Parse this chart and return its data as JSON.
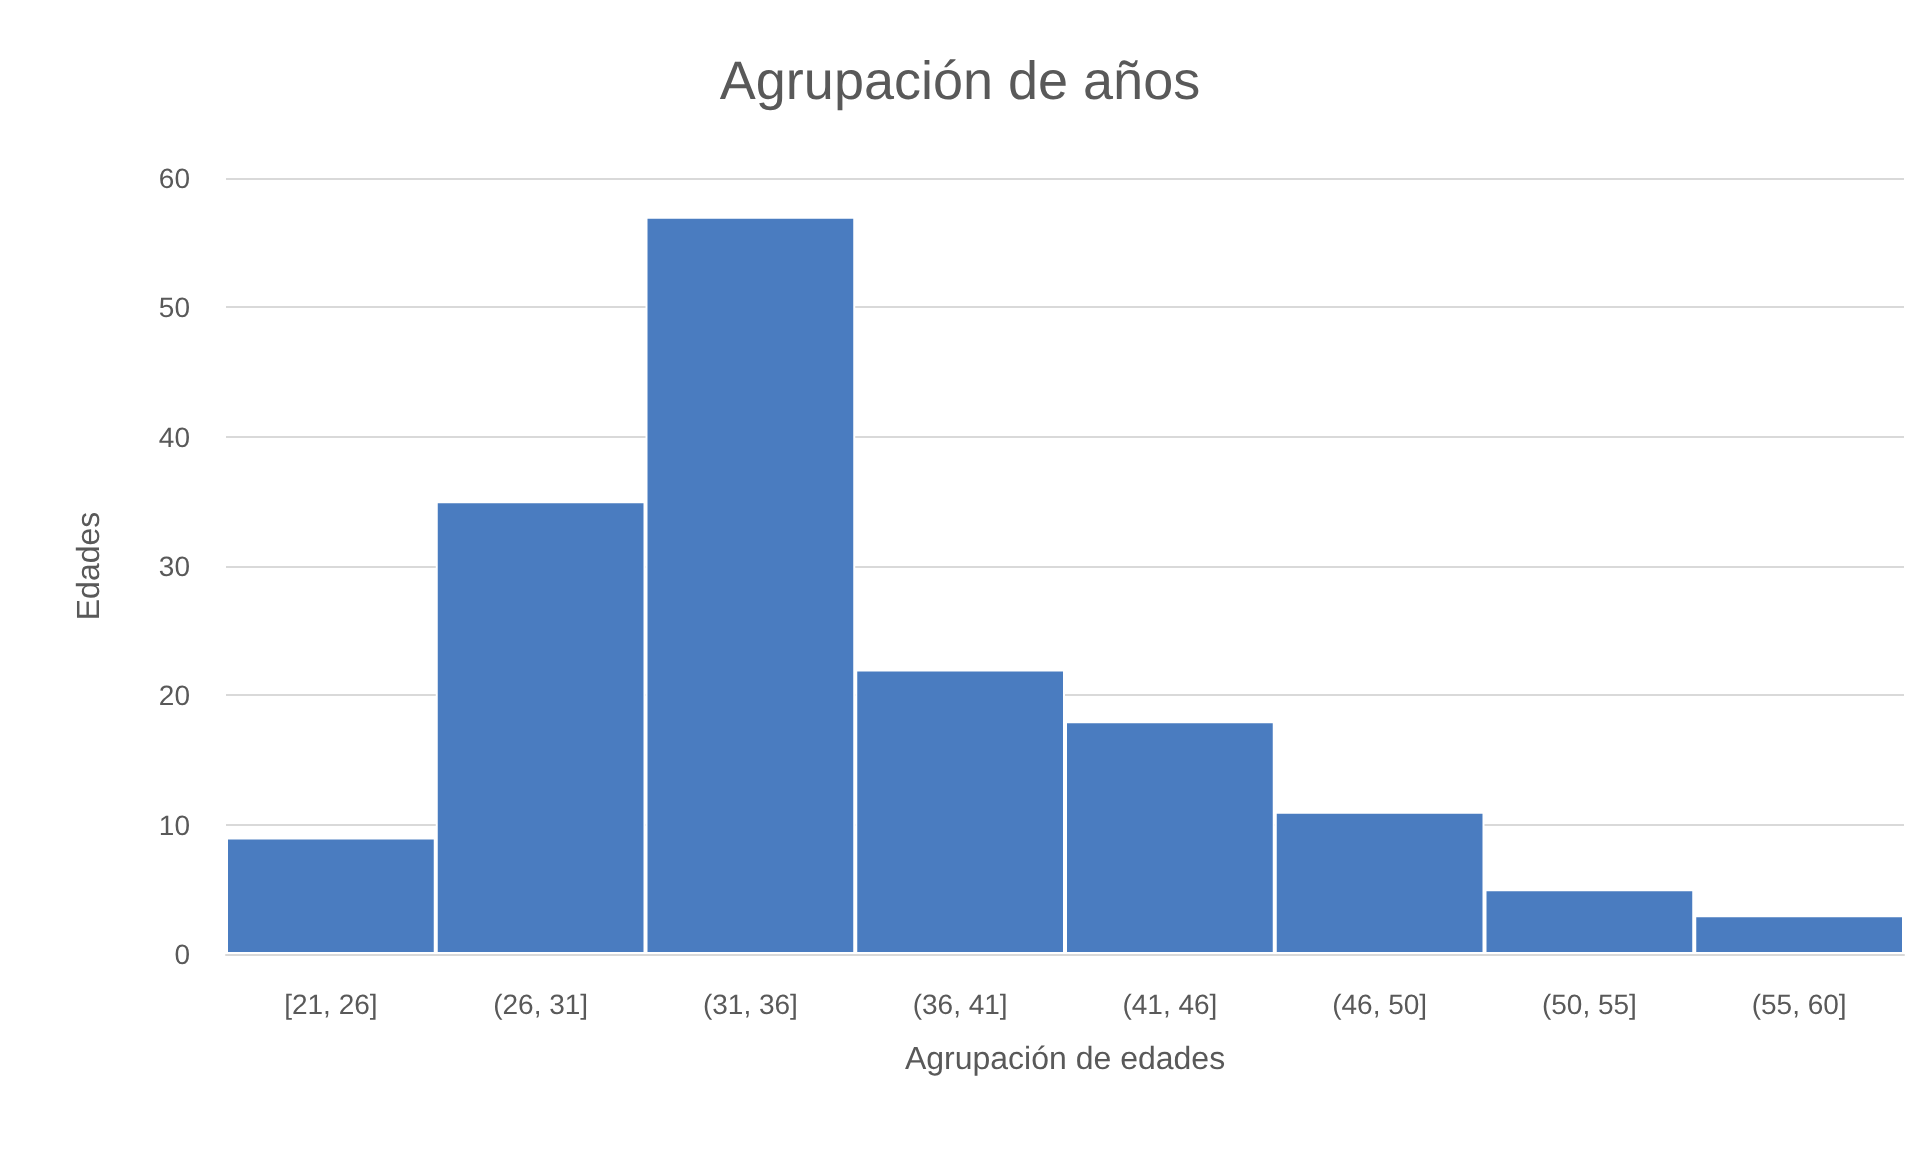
{
  "chart_data": {
    "type": "bar",
    "title": "Agrupación de años",
    "xlabel": "Agrupación de edades",
    "ylabel": "Edades",
    "categories": [
      "[21, 26]",
      "(26, 31]",
      "(31, 36]",
      "(36, 41]",
      "(41, 46]",
      "(46, 50]",
      "(50, 55]",
      "(55, 60]"
    ],
    "values": [
      9,
      35,
      57,
      22,
      18,
      11,
      5,
      3
    ],
    "color": "#4a7cc0",
    "ylim": [
      0,
      60
    ],
    "yticks": [
      0,
      10,
      20,
      30,
      40,
      50,
      60
    ],
    "grid": "y"
  }
}
